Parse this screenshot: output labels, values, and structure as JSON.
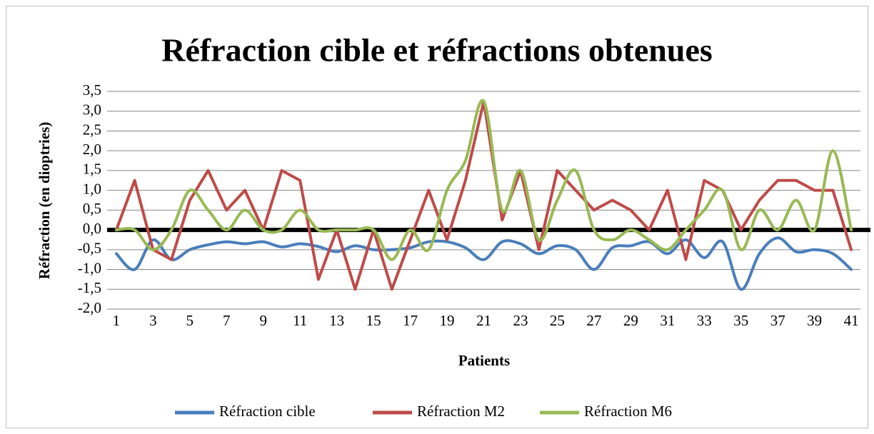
{
  "chart_data": {
    "type": "line",
    "title": "Réfraction cible et réfractions obtenues",
    "x_label": "Patients",
    "y_label": "Réfraction (en dioptries)",
    "categories": [
      1,
      null,
      3,
      null,
      5,
      null,
      7,
      null,
      9,
      null,
      11,
      null,
      13,
      null,
      15,
      null,
      17,
      null,
      19,
      null,
      21,
      null,
      23,
      null,
      25,
      null,
      27,
      null,
      29,
      null,
      31,
      null,
      33,
      null,
      35,
      null,
      37,
      null,
      39,
      null,
      41
    ],
    "ylim": [
      -2,
      3.5
    ],
    "yticks": [
      {
        "value": -2,
        "label": "-2,0"
      },
      {
        "value": -1.5,
        "label": "-1,5"
      },
      {
        "value": -1,
        "label": "-1,0"
      },
      {
        "value": -0.5,
        "label": "-0,5"
      },
      {
        "value": 0,
        "label": "0,0"
      },
      {
        "value": 0.5,
        "label": "0,5"
      },
      {
        "value": 1,
        "label": "1,0"
      },
      {
        "value": 1.5,
        "label": "1,5"
      },
      {
        "value": 2,
        "label": "2,0"
      },
      {
        "value": 2.5,
        "label": "2,5"
      },
      {
        "value": 3,
        "label": "3,0"
      },
      {
        "value": 3.5,
        "label": "3,5"
      }
    ],
    "grid": true,
    "legend": "bottom",
    "series": [
      {
        "name": "Réfraction cible",
        "color": "#4a7ebb",
        "smooth": true,
        "values": [
          -0.6,
          -1.0,
          -0.25,
          -0.75,
          -0.5,
          -0.375,
          -0.3,
          -0.35,
          -0.3,
          -0.43,
          -0.35,
          -0.42,
          -0.55,
          -0.4,
          -0.5,
          -0.5,
          -0.45,
          -0.3,
          -0.3,
          -0.45,
          -0.75,
          -0.3,
          -0.35,
          -0.6,
          -0.4,
          -0.5,
          -1.0,
          -0.45,
          -0.4,
          -0.3,
          -0.6,
          -0.25,
          -0.7,
          -0.3,
          -1.5,
          -0.6,
          -0.2,
          -0.55,
          -0.5,
          -0.6,
          -1.0
        ]
      },
      {
        "name": "Réfraction M2",
        "color": "#be4b48",
        "smooth": false,
        "values": [
          0,
          1.25,
          -0.5,
          -0.75,
          0.75,
          1.5,
          0.5,
          1.0,
          0,
          1.5,
          1.25,
          -1.25,
          0,
          -1.5,
          0,
          -1.5,
          -0.25,
          1.0,
          -0.25,
          1.25,
          3.25,
          0.25,
          1.5,
          -0.5,
          1.5,
          1.0,
          0.5,
          0.75,
          0.5,
          0,
          1.0,
          -0.75,
          1.25,
          1.0,
          0,
          0.75,
          1.25,
          1.25,
          1.0,
          1.0,
          -0.5
        ]
      },
      {
        "name": "Réfraction M6",
        "color": "#98b954",
        "smooth": true,
        "values": [
          0,
          0,
          -0.5,
          0,
          1.0,
          0.5,
          0,
          0.5,
          0,
          0,
          0.5,
          0,
          0,
          0,
          0,
          -0.75,
          0,
          -0.5,
          1.0,
          1.75,
          3.25,
          0.5,
          1.5,
          -0.25,
          0.75,
          1.5,
          0,
          -0.25,
          0,
          -0.25,
          -0.5,
          0,
          0.5,
          1.0,
          -0.5,
          0.5,
          0,
          0.75,
          0,
          2.0,
          0
        ]
      }
    ]
  }
}
